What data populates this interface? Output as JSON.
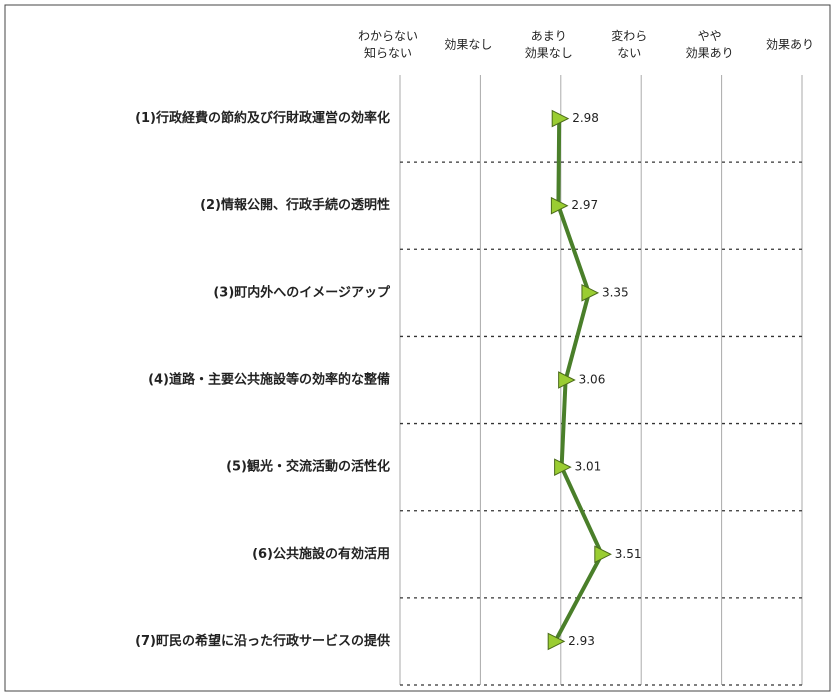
{
  "chart_data": {
    "type": "line",
    "categories": [
      "(1)行政経費の節約及び行財政運営の効率化",
      "(2)情報公開、行政手続の透明性",
      "(3)町内外へのイメージアップ",
      "(4)道路・主要公共施設等の効率的な整備",
      "(5)観光・交流活動の活性化",
      "(6)公共施設の有効活用",
      "(7)町民の希望に沿った行政サービスの提供"
    ],
    "values": [
      2.98,
      2.97,
      3.35,
      3.06,
      3.01,
      3.51,
      2.93
    ],
    "color": "#4a7f2a",
    "marker_color": "#9acd32",
    "xlim": [
      1,
      6
    ],
    "xticks": [
      {
        "value": 1,
        "label": [
          "わからない",
          "知らない"
        ]
      },
      {
        "value": 2,
        "label": [
          "効果なし"
        ]
      },
      {
        "value": 3,
        "label": [
          "あまり",
          "効果なし"
        ]
      },
      {
        "value": 4,
        "label": [
          "変わら",
          "ない"
        ]
      },
      {
        "value": 5,
        "label": [
          "やや",
          "効果あり"
        ]
      },
      {
        "value": 6,
        "label": [
          "効果あり"
        ]
      }
    ],
    "grid": true
  }
}
